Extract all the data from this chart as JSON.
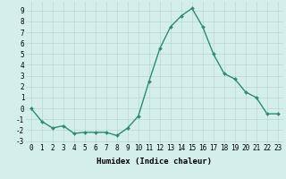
{
  "x": [
    0,
    1,
    2,
    3,
    4,
    5,
    6,
    7,
    8,
    9,
    10,
    11,
    12,
    13,
    14,
    15,
    16,
    17,
    18,
    19,
    20,
    21,
    22,
    23
  ],
  "y": [
    0.0,
    -1.2,
    -1.8,
    -1.6,
    -2.3,
    -2.2,
    -2.2,
    -2.2,
    -2.5,
    -1.8,
    -0.7,
    2.5,
    5.5,
    7.5,
    8.5,
    9.2,
    7.5,
    5.0,
    3.2,
    2.7,
    1.5,
    1.0,
    -0.5,
    -0.5
  ],
  "line_color": "#2e8b74",
  "marker": "D",
  "marker_size": 2.0,
  "linewidth": 1.0,
  "xlabel": "Humidex (Indice chaleur)",
  "xlim": [
    -0.5,
    23.5
  ],
  "ylim": [
    -3.2,
    9.8
  ],
  "xtick_labels": [
    "0",
    "1",
    "2",
    "3",
    "4",
    "5",
    "6",
    "7",
    "8",
    "9",
    "10",
    "11",
    "12",
    "13",
    "14",
    "15",
    "16",
    "17",
    "18",
    "19",
    "20",
    "21",
    "22",
    "23"
  ],
  "ytick_values": [
    -3,
    -2,
    -1,
    0,
    1,
    2,
    3,
    4,
    5,
    6,
    7,
    8,
    9
  ],
  "bg_color": "#d4eeec",
  "grid_color": "#b8d8d5",
  "tick_fontsize": 5.5,
  "label_fontsize": 6.5
}
